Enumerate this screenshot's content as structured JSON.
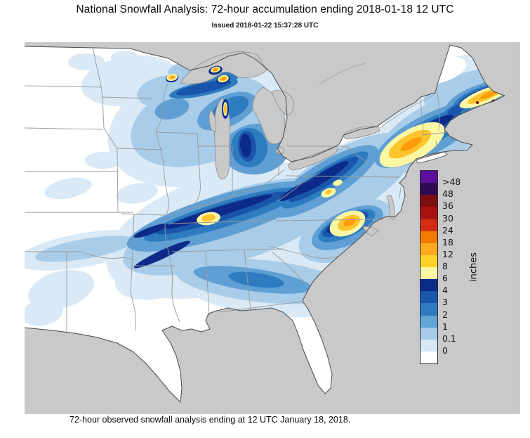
{
  "header": {
    "title": "National Snowfall Analysis: 72-hour accumulation ending 2018-01-18 12 UTC",
    "subtitle": "Issued 2018-01-22 15:37:28 UTC"
  },
  "caption": "72-hour observed snowfall analysis ending at 12 UTC January 18, 2018.",
  "legend": {
    "unit": "inches",
    "cells": [
      {
        "color": "#5b109d",
        "label": ">48"
      },
      {
        "color": "#2f0a52",
        "label": "48"
      },
      {
        "color": "#7c0c10",
        "label": "36"
      },
      {
        "color": "#a81212",
        "label": "30"
      },
      {
        "color": "#d32d14",
        "label": "24"
      },
      {
        "color": "#f47a02",
        "label": "18"
      },
      {
        "color": "#fdaa1e",
        "label": "12"
      },
      {
        "color": "#fdd32a",
        "label": "8"
      },
      {
        "color": "#fbf8a5",
        "label": "6"
      },
      {
        "color": "#0c2a88",
        "label": "4"
      },
      {
        "color": "#1a55ac",
        "label": "3"
      },
      {
        "color": "#2e7cc0",
        "label": "2"
      },
      {
        "color": "#61a4d6",
        "label": "1"
      },
      {
        "color": "#a7cbe8",
        "label": "0.1"
      },
      {
        "color": "#d6e8f6",
        "label": "0"
      },
      {
        "color": "#ffffff",
        "label": ""
      }
    ]
  },
  "map": {
    "no_data_color": "#c9c9c9",
    "land_color": "#ffffff",
    "state_border_color": "#9a9a9a",
    "coast_color": "#4a4a4a",
    "palette": {
      "wash1": "#d9e9f6",
      "wash2": "#a9cce8",
      "white": "#ffffff",
      "mid": "#5f9fd4",
      "mid2": "#2e7cc0",
      "dark": "#1a55ac",
      "navy": "#0c2a88",
      "yellow": "#fbf8a5",
      "gold": "#fdc42d",
      "orange": "#fb9a0a",
      "speck": "#6d0b1e"
    }
  }
}
